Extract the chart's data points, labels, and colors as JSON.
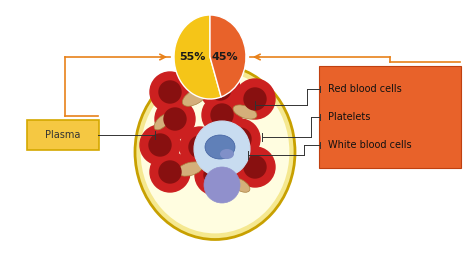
{
  "bg_color": "#ffffff",
  "pie_values": [
    55,
    45
  ],
  "pie_colors": [
    "#F5C518",
    "#E8622A"
  ],
  "pie_labels": [
    "55%",
    "45%"
  ],
  "cell_facecolor": "#F5E890",
  "cell_edgecolor": "#C8A000",
  "plasma_box_text": "Plasma",
  "plasma_box_color": "#F5C842",
  "plasma_box_edgecolor": "#D4A800",
  "right_box_color": "#E8622A",
  "right_box_labels": [
    "Red blood cells",
    "Platelets",
    "White blood cells"
  ],
  "orange_line_color": "#E8811A",
  "black_line_color": "#333333",
  "label_fontsize": 7,
  "pie_label_fontsize": 8
}
